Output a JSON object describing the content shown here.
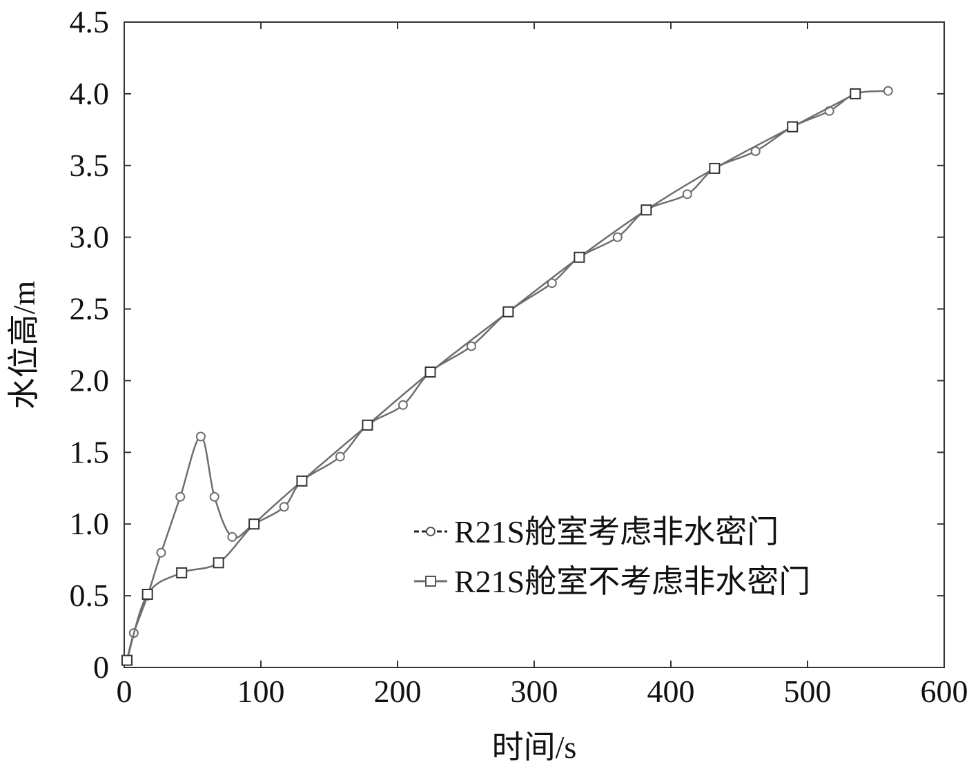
{
  "chart_data": {
    "type": "line",
    "xlabel": "时间/s",
    "ylabel": "水位高/m",
    "xlim": [
      0,
      600
    ],
    "ylim": [
      0,
      4.5
    ],
    "xticks": [
      "0",
      "100",
      "200",
      "300",
      "400",
      "500",
      "600"
    ],
    "yticks": [
      "0",
      "0.5",
      "1.0",
      "1.5",
      "2.0",
      "2.5",
      "3.0",
      "3.5",
      "4.0",
      "4.5"
    ],
    "grid": false,
    "legend_position": "center-right",
    "series": [
      {
        "name": "R21S舱室考虑非水密门",
        "marker": "circle",
        "line_style": "dashed",
        "color": "#6e6e6e",
        "x": [
          2,
          7,
          17,
          27,
          41,
          56,
          66,
          79,
          95,
          117,
          130,
          158,
          178,
          204,
          224,
          254,
          281,
          313,
          333,
          361,
          382,
          412,
          432,
          462,
          489,
          516,
          535,
          559
        ],
        "y": [
          0.05,
          0.24,
          0.5,
          0.8,
          1.19,
          1.61,
          1.19,
          0.91,
          1.0,
          1.12,
          1.3,
          1.47,
          1.69,
          1.83,
          2.06,
          2.24,
          2.48,
          2.68,
          2.86,
          3.0,
          3.19,
          3.3,
          3.48,
          3.6,
          3.77,
          3.88,
          4.0,
          4.02
        ]
      },
      {
        "name": "R21S舱室不考虑非水密门",
        "marker": "square",
        "line_style": "solid",
        "color": "#6e6e6e",
        "x": [
          2,
          17,
          42,
          69,
          95,
          130,
          178,
          224,
          281,
          333,
          382,
          432,
          489,
          535
        ],
        "y": [
          0.05,
          0.51,
          0.66,
          0.73,
          1.0,
          1.3,
          1.69,
          2.06,
          2.48,
          2.86,
          3.19,
          3.48,
          3.77,
          4.0
        ]
      }
    ]
  }
}
